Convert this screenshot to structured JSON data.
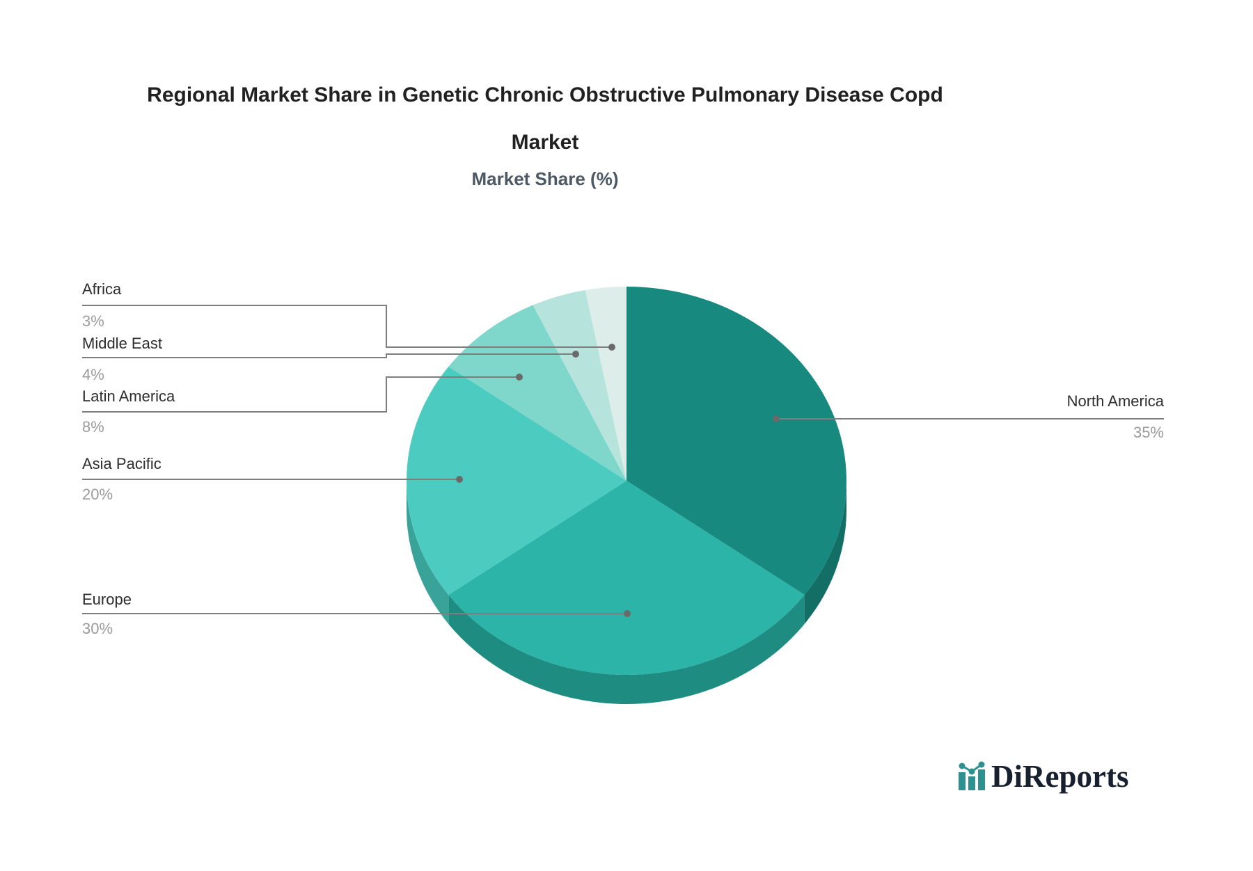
{
  "title": {
    "line1": "Regional Market Share in Genetic Chronic Obstructive Pulmonary Disease Copd",
    "line2": "Market",
    "subtitle": "Market Share (%)"
  },
  "logo": {
    "name": "DiReports"
  },
  "chart_data": {
    "type": "pie",
    "style": "pie3d",
    "title": "Regional Market Share in Genetic Chronic Obstructive Pulmonary Disease Copd Market",
    "subtitle": "Market Share (%)",
    "unit": "%",
    "start_angle_deg": 0,
    "direction": "clockwise",
    "legend_position": "callout-labels",
    "slices": [
      {
        "label": "North America",
        "value": 35,
        "pct_label": "35%",
        "color": "#17897F",
        "side_color": "#136E66"
      },
      {
        "label": "Europe",
        "value": 30,
        "pct_label": "30%",
        "color": "#2BB4A7",
        "side_color": "#1F8C82"
      },
      {
        "label": "Asia Pacific",
        "value": 20,
        "pct_label": "20%",
        "color": "#4CCBC0",
        "side_color": "#3AA399"
      },
      {
        "label": "Latin America",
        "value": 8,
        "pct_label": "8%",
        "color": "#7FD6CA",
        "side_color": "#68BDB1"
      },
      {
        "label": "Middle East",
        "value": 4,
        "pct_label": "4%",
        "color": "#B7E3DD",
        "side_color": "#9ECFC8"
      },
      {
        "label": "Africa",
        "value": 3,
        "pct_label": "3%",
        "color": "#DCEDEA",
        "side_color": "#C4DBD7"
      }
    ],
    "leader_color": "#7E7E7E",
    "dot_color": "#6A6A6A",
    "label_color": "#2D2D2D",
    "pct_color": "#9B9B9B",
    "logo_accent_color": "#2E9190"
  }
}
